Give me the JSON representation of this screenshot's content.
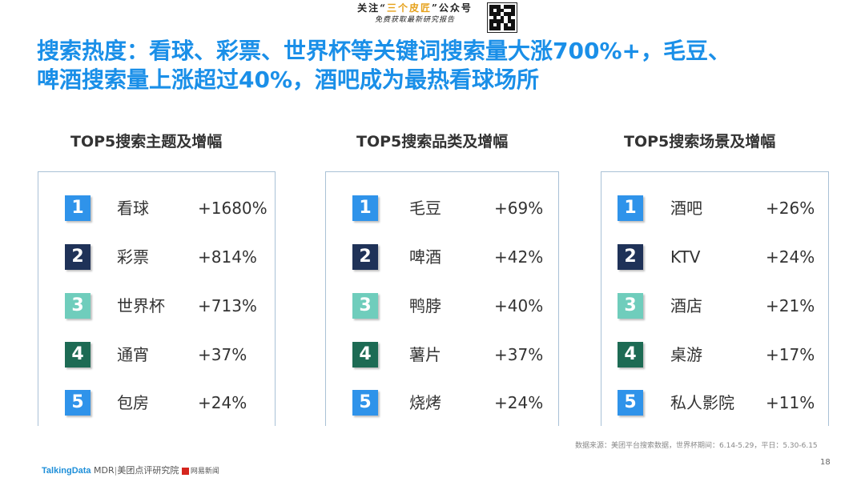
{
  "watermark": {
    "line1_prefix": "关注“",
    "line1_highlight": "三个皮匠",
    "line1_suffix": "”公众号",
    "line2": "免费获取最新研究报告"
  },
  "title": {
    "line1": "搜索热度：看球、彩票、世界杯等关键词搜索量大涨700%+，毛豆、",
    "line2": "啤酒搜索量上涨超过40%，酒吧成为最热看球场所"
  },
  "panels": [
    {
      "title": "TOP5搜索主题及增幅",
      "items": [
        {
          "rank": "1",
          "name": "看球",
          "pct": "+1680%"
        },
        {
          "rank": "2",
          "name": "彩票",
          "pct": "+814%"
        },
        {
          "rank": "3",
          "name": "世界杯",
          "pct": "+713%"
        },
        {
          "rank": "4",
          "name": "通宵",
          "pct": "+37%"
        },
        {
          "rank": "5",
          "name": "包房",
          "pct": "+24%"
        }
      ]
    },
    {
      "title": "TOP5搜索品类及增幅",
      "items": [
        {
          "rank": "1",
          "name": "毛豆",
          "pct": "+69%"
        },
        {
          "rank": "2",
          "name": "啤酒",
          "pct": "+42%"
        },
        {
          "rank": "3",
          "name": "鸭脖",
          "pct": "+40%"
        },
        {
          "rank": "4",
          "name": "薯片",
          "pct": "+37%"
        },
        {
          "rank": "5",
          "name": "烧烤",
          "pct": "+24%"
        }
      ]
    },
    {
      "title": "TOP5搜索场景及增幅",
      "items": [
        {
          "rank": "1",
          "name": "酒吧",
          "pct": "+26%"
        },
        {
          "rank": "2",
          "name": "KTV",
          "pct": "+24%"
        },
        {
          "rank": "3",
          "name": "酒店",
          "pct": "+21%"
        },
        {
          "rank": "4",
          "name": "桌游",
          "pct": "+17%"
        },
        {
          "rank": "5",
          "name": "私人影院",
          "pct": "+11%"
        }
      ]
    }
  ],
  "footer": {
    "source": "数据来源：美团平台搜索数据，世界杯期间：6.14-5.29，平日：5.30-6.15",
    "page": "18",
    "logo_talkingdata": "TalkingData",
    "logo_mdr": "MDR",
    "logo_meituan": "美团点评研究院",
    "logo_wangyi": "网易新闻"
  },
  "colors": {
    "title": "#1a8fe8",
    "rank_1": "#2f93ea",
    "rank_2": "#1f3258",
    "rank_3": "#6fcdbc",
    "rank_4": "#1d6b54",
    "rank_5": "#2f93ea"
  }
}
